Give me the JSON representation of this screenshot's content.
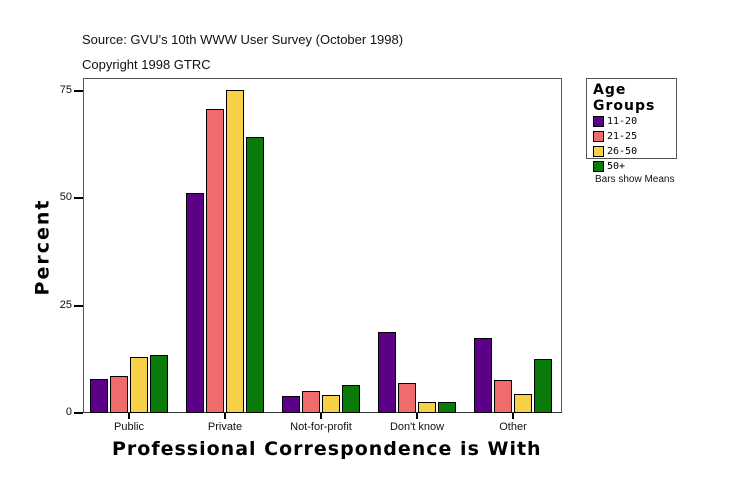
{
  "header": {
    "source": "Source: GVU's 10th WWW User Survey (October 1998)",
    "copyright": "Copyright 1998 GTRC"
  },
  "legend": {
    "title": "Age Groups",
    "items": [
      {
        "label": "11-20",
        "color": "#5c0087"
      },
      {
        "label": "21-25",
        "color": "#f06b6b"
      },
      {
        "label": "26-50",
        "color": "#f7d04a"
      },
      {
        "label": "50+",
        "color": "#0a7a0a"
      }
    ]
  },
  "note": "Bars show Means",
  "chart_data": {
    "type": "bar",
    "title": "",
    "xlabel": "Professional Correspondence is With",
    "ylabel": "Percent",
    "ylim": [
      0,
      78
    ],
    "yticks": [
      "0",
      "25",
      "50",
      "75"
    ],
    "categories": [
      "Public",
      "Private",
      "Not-for-profit",
      "Don't know",
      "Other"
    ],
    "series": [
      {
        "name": "11-20",
        "color": "#5c0087",
        "values": [
          7.9,
          51.2,
          4.0,
          18.9,
          17.5
        ]
      },
      {
        "name": "21-25",
        "color": "#f06b6b",
        "values": [
          8.6,
          70.8,
          5.1,
          7.0,
          7.7
        ]
      },
      {
        "name": "26-50",
        "color": "#f7d04a",
        "values": [
          13.0,
          75.2,
          4.2,
          2.6,
          4.4
        ]
      },
      {
        "name": "50+",
        "color": "#0a7a0a",
        "values": [
          13.5,
          64.3,
          6.5,
          2.6,
          12.6
        ]
      }
    ],
    "legend_position": "right",
    "grid": false
  }
}
